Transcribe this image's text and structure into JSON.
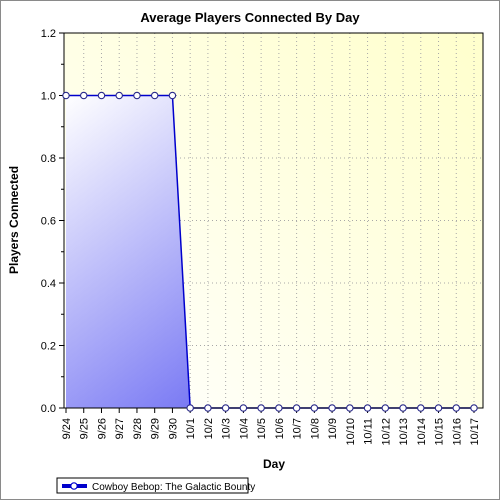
{
  "chart_data": {
    "type": "area",
    "title": "Average Players Connected By Day",
    "xlabel": "Day",
    "ylabel": "Players Connected",
    "ylim": [
      0,
      1.2
    ],
    "yticks": [
      "0.0",
      "0.2",
      "0.4",
      "0.6",
      "0.8",
      "1.0",
      "1.2"
    ],
    "categories": [
      "9/24",
      "9/25",
      "9/26",
      "9/27",
      "9/28",
      "9/29",
      "9/30",
      "10/1",
      "10/2",
      "10/3",
      "10/4",
      "10/5",
      "10/6",
      "10/7",
      "10/8",
      "10/9",
      "10/10",
      "10/11",
      "10/12",
      "10/13",
      "10/14",
      "10/15",
      "10/16",
      "10/17"
    ],
    "series": [
      {
        "name": "Cowboy Bebop: The Galactic Bounty",
        "values": [
          1,
          1,
          1,
          1,
          1,
          1,
          1,
          0,
          0,
          0,
          0,
          0,
          0,
          0,
          0,
          0,
          0,
          0,
          0,
          0,
          0,
          0,
          0,
          0
        ],
        "color": "#0000cc"
      }
    ],
    "grid": true,
    "legend": "bottom-left",
    "plot_background": [
      "#ffffff",
      "#ffffcc"
    ],
    "area_gradient": [
      "#ffffff",
      "#3333ee"
    ]
  }
}
